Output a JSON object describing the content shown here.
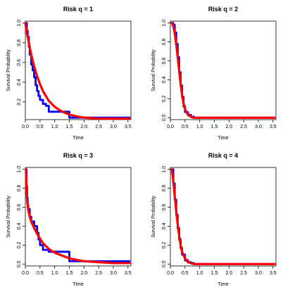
{
  "chart_data": [
    {
      "type": "line",
      "title": "Risk q = 1",
      "xlabel": "Time",
      "ylabel": "Survival Probability",
      "xlim": [
        0,
        3.6
      ],
      "ylim": [
        0.02,
        1.02
      ],
      "x_ticks": [
        "0.0",
        "0.5",
        "1.0",
        "1.5",
        "2.0",
        "2.5",
        "3.0",
        "3.5"
      ],
      "y_ticks": [
        "0.2",
        "0.4",
        "0.6",
        "0.8",
        "1.0"
      ],
      "grid": false,
      "series": [
        {
          "color": "#0000ff",
          "style": "step",
          "x": [
            0.0,
            0.05,
            0.08,
            0.12,
            0.15,
            0.2,
            0.25,
            0.3,
            0.35,
            0.4,
            0.45,
            0.5,
            0.6,
            0.7,
            0.8,
            1.0,
            1.2,
            1.5,
            3.55
          ],
          "y": [
            1.0,
            0.92,
            0.86,
            0.76,
            0.68,
            0.58,
            0.52,
            0.45,
            0.37,
            0.31,
            0.26,
            0.22,
            0.18,
            0.16,
            0.1,
            0.1,
            0.1,
            0.04,
            0.04
          ]
        },
        {
          "color": "#ff0000",
          "style": "smooth",
          "x": [
            0.0,
            0.05,
            0.1,
            0.15,
            0.2,
            0.3,
            0.4,
            0.5,
            0.6,
            0.7,
            0.8,
            1.0,
            1.2,
            1.5,
            1.8,
            2.0,
            2.5,
            3.0,
            3.55
          ],
          "y": [
            1.0,
            0.9,
            0.83,
            0.75,
            0.68,
            0.56,
            0.46,
            0.38,
            0.31,
            0.26,
            0.21,
            0.15,
            0.11,
            0.07,
            0.05,
            0.04,
            0.03,
            0.03,
            0.03
          ]
        }
      ]
    },
    {
      "type": "line",
      "title": "Risk q = 2",
      "xlabel": "Time",
      "ylabel": "Survival Probability",
      "xlim": [
        0,
        3.6
      ],
      "ylim": [
        -0.02,
        1.02
      ],
      "x_ticks": [
        "0.0",
        "0.5",
        "1.0",
        "1.5",
        "2.0",
        "2.5",
        "3.0",
        "3.5"
      ],
      "y_ticks": [
        "0.0",
        "0.2",
        "0.4",
        "0.6",
        "0.8",
        "1.0"
      ],
      "grid": false,
      "series": [
        {
          "color": "#0000ff",
          "style": "step",
          "x": [
            0.05,
            0.1,
            0.15,
            0.2,
            0.25,
            0.3,
            0.35,
            0.4,
            0.45,
            0.5,
            0.6,
            0.7,
            0.8,
            3.55
          ],
          "y": [
            1.0,
            0.98,
            0.9,
            0.78,
            0.64,
            0.48,
            0.34,
            0.22,
            0.12,
            0.06,
            0.03,
            0.01,
            0.0,
            0.0
          ]
        },
        {
          "color": "#ff0000",
          "style": "smooth",
          "x": [
            0.05,
            0.1,
            0.15,
            0.2,
            0.25,
            0.3,
            0.35,
            0.4,
            0.45,
            0.5,
            0.6,
            0.7,
            0.8,
            1.0,
            1.5,
            2.0,
            3.0,
            3.55
          ],
          "y": [
            1.0,
            0.97,
            0.89,
            0.78,
            0.64,
            0.5,
            0.36,
            0.24,
            0.15,
            0.09,
            0.03,
            0.01,
            0.0,
            0.0,
            0.0,
            0.0,
            0.0,
            0.0
          ]
        }
      ]
    },
    {
      "type": "line",
      "title": "Risk q = 3",
      "xlabel": "Time",
      "ylabel": "Survival Probability",
      "xlim": [
        0,
        3.6
      ],
      "ylim": [
        -0.02,
        1.02
      ],
      "x_ticks": [
        "0.0",
        "0.5",
        "1.0",
        "1.5",
        "2.0",
        "2.5",
        "3.0",
        "3.5"
      ],
      "y_ticks": [
        "0.0",
        "0.2",
        "0.4",
        "0.6",
        "0.8",
        "1.0"
      ],
      "grid": false,
      "series": [
        {
          "color": "#0000ff",
          "style": "step",
          "x": [
            0.02,
            0.04,
            0.06,
            0.08,
            0.1,
            0.15,
            0.2,
            0.3,
            0.4,
            0.45,
            0.5,
            0.6,
            0.8,
            1.0,
            1.5,
            2.0,
            3.55
          ],
          "y": [
            1.0,
            0.82,
            0.7,
            0.62,
            0.58,
            0.5,
            0.45,
            0.4,
            0.33,
            0.26,
            0.2,
            0.15,
            0.13,
            0.13,
            0.03,
            0.03,
            0.03
          ]
        },
        {
          "color": "#ff0000",
          "style": "smooth",
          "x": [
            0.02,
            0.04,
            0.06,
            0.08,
            0.1,
            0.15,
            0.2,
            0.3,
            0.4,
            0.5,
            0.6,
            0.8,
            1.0,
            1.5,
            2.0,
            2.5,
            3.0,
            3.55
          ],
          "y": [
            1.0,
            0.8,
            0.68,
            0.62,
            0.57,
            0.5,
            0.45,
            0.38,
            0.32,
            0.27,
            0.22,
            0.16,
            0.12,
            0.06,
            0.03,
            0.02,
            0.01,
            0.01
          ]
        }
      ]
    },
    {
      "type": "line",
      "title": "Risk q = 4",
      "xlabel": "Time",
      "ylabel": "Survival Probability",
      "xlim": [
        0,
        3.6
      ],
      "ylim": [
        -0.02,
        1.02
      ],
      "x_ticks": [
        "0.0",
        "0.5",
        "1.0",
        "1.5",
        "2.0",
        "2.5",
        "3.0",
        "3.5"
      ],
      "y_ticks": [
        "0.0",
        "0.2",
        "0.4",
        "0.6",
        "0.8",
        "1.0"
      ],
      "grid": false,
      "series": [
        {
          "color": "#0000ff",
          "style": "step",
          "x": [
            0.05,
            0.1,
            0.15,
            0.2,
            0.25,
            0.3,
            0.35,
            0.4,
            0.5,
            0.6,
            0.7,
            0.8,
            3.55
          ],
          "y": [
            1.0,
            0.85,
            0.68,
            0.52,
            0.38,
            0.26,
            0.17,
            0.1,
            0.04,
            0.02,
            0.01,
            0.0,
            0.0
          ]
        },
        {
          "color": "#ff0000",
          "style": "smooth",
          "x": [
            0.05,
            0.1,
            0.15,
            0.2,
            0.25,
            0.3,
            0.35,
            0.4,
            0.5,
            0.6,
            0.7,
            0.8,
            1.0,
            1.5,
            2.0,
            3.0,
            3.55
          ],
          "y": [
            1.0,
            0.88,
            0.72,
            0.56,
            0.42,
            0.3,
            0.2,
            0.13,
            0.06,
            0.02,
            0.01,
            0.0,
            0.0,
            0.0,
            0.0,
            0.0,
            0.0
          ]
        }
      ]
    }
  ]
}
